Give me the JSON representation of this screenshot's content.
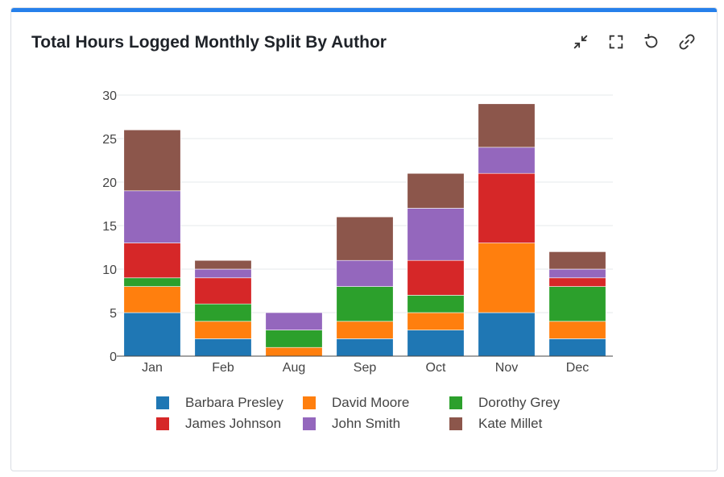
{
  "title": "Total Hours Logged Monthly Split By Author",
  "tools": [
    {
      "name": "minimize-icon"
    },
    {
      "name": "fullscreen-icon"
    },
    {
      "name": "reset-icon"
    },
    {
      "name": "link-icon"
    }
  ],
  "chart_data": {
    "type": "bar",
    "stacked": true,
    "title": "Total Hours Logged Monthly Split By Author",
    "xlabel": "",
    "ylabel": "",
    "ylim": [
      0,
      30
    ],
    "yticks": [
      0,
      5,
      10,
      15,
      20,
      25,
      30
    ],
    "grid": true,
    "legend_position": "bottom",
    "categories": [
      "Jan",
      "Feb",
      "Aug",
      "Sep",
      "Oct",
      "Nov",
      "Dec"
    ],
    "series": [
      {
        "name": "Barbara Presley",
        "color": "#1f77b4",
        "values": [
          5,
          2,
          0,
          2,
          3,
          5,
          2
        ]
      },
      {
        "name": "David Moore",
        "color": "#ff7f0e",
        "values": [
          3,
          2,
          1,
          2,
          2,
          8,
          2
        ]
      },
      {
        "name": "Dorothy Grey",
        "color": "#2ca02c",
        "values": [
          1,
          2,
          2,
          4,
          2,
          0,
          4
        ]
      },
      {
        "name": "James Johnson",
        "color": "#d62728",
        "values": [
          4,
          3,
          0,
          0,
          4,
          8,
          1
        ]
      },
      {
        "name": "John Smith",
        "color": "#9467bd",
        "values": [
          6,
          1,
          2,
          3,
          6,
          3,
          1
        ]
      },
      {
        "name": "Kate Millet",
        "color": "#8c564b",
        "values": [
          7,
          1,
          0,
          5,
          4,
          5,
          2
        ]
      }
    ]
  }
}
